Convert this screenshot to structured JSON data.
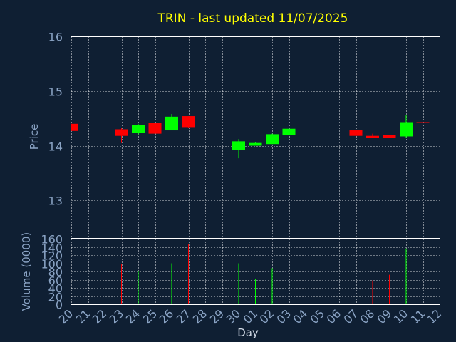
{
  "chart_data": {
    "title": "TRIN - last updated 11/07/2025",
    "colors": {
      "background": "#0f1f33",
      "title": "#ffff00",
      "axis_text": "#8aa3c4",
      "frame": "#ffffff",
      "grid": "#ffffff",
      "up": "#00ff00",
      "down": "#ff0000"
    },
    "price_panel": {
      "type": "candlestick",
      "ylabel": "Price",
      "ylim": [
        12.3,
        16
      ],
      "yticks": [
        13,
        14,
        15,
        16
      ],
      "grid": true
    },
    "volume_panel": {
      "type": "bar",
      "ylabel": "Volume (0000)",
      "ylim": [
        0,
        160
      ],
      "yticks": [
        0,
        20,
        40,
        60,
        80,
        100,
        120,
        140,
        160
      ],
      "grid": true
    },
    "x_axis": {
      "xlabel": "Day",
      "ticks": [
        "20",
        "21",
        "22",
        "23",
        "24",
        "25",
        "26",
        "27",
        "28",
        "29",
        "30",
        "01",
        "02",
        "03",
        "04",
        "05",
        "06",
        "07",
        "08",
        "09",
        "10",
        "11",
        "12"
      ]
    },
    "candles": [
      {
        "day": "20",
        "open": 14.4,
        "high": 14.4,
        "low": 14.27,
        "close": 14.27,
        "volume": 0
      },
      {
        "day": "23",
        "open": 14.3,
        "high": 14.32,
        "low": 14.05,
        "close": 14.18,
        "volume": 98
      },
      {
        "day": "24",
        "open": 14.23,
        "high": 14.4,
        "low": 14.2,
        "close": 14.38,
        "volume": 80
      },
      {
        "day": "25",
        "open": 14.42,
        "high": 14.42,
        "low": 14.15,
        "close": 14.22,
        "volume": 86
      },
      {
        "day": "26",
        "open": 14.28,
        "high": 14.58,
        "low": 14.28,
        "close": 14.53,
        "volume": 100
      },
      {
        "day": "27",
        "open": 14.54,
        "high": 14.54,
        "low": 14.33,
        "close": 14.34,
        "volume": 146
      },
      {
        "day": "30",
        "open": 13.92,
        "high": 14.12,
        "low": 13.77,
        "close": 14.08,
        "volume": 100
      },
      {
        "day": "01",
        "open": 14.0,
        "high": 14.07,
        "low": 14.0,
        "close": 14.05,
        "volume": 62
      },
      {
        "day": "02",
        "open": 14.03,
        "high": 14.22,
        "low": 14.03,
        "close": 14.21,
        "volume": 88
      },
      {
        "day": "03",
        "open": 14.2,
        "high": 14.32,
        "low": 14.2,
        "close": 14.31,
        "volume": 50
      },
      {
        "day": "07",
        "open": 14.28,
        "high": 14.28,
        "low": 14.16,
        "close": 14.18,
        "volume": 78
      },
      {
        "day": "08",
        "open": 14.18,
        "high": 14.22,
        "low": 14.14,
        "close": 14.15,
        "volume": 58
      },
      {
        "day": "09",
        "open": 14.2,
        "high": 14.2,
        "low": 14.14,
        "close": 14.15,
        "volume": 72
      },
      {
        "day": "10",
        "open": 14.17,
        "high": 14.56,
        "low": 14.15,
        "close": 14.43,
        "volume": 136
      },
      {
        "day": "11",
        "open": 14.43,
        "high": 14.46,
        "low": 14.4,
        "close": 14.42,
        "volume": 84
      }
    ]
  }
}
